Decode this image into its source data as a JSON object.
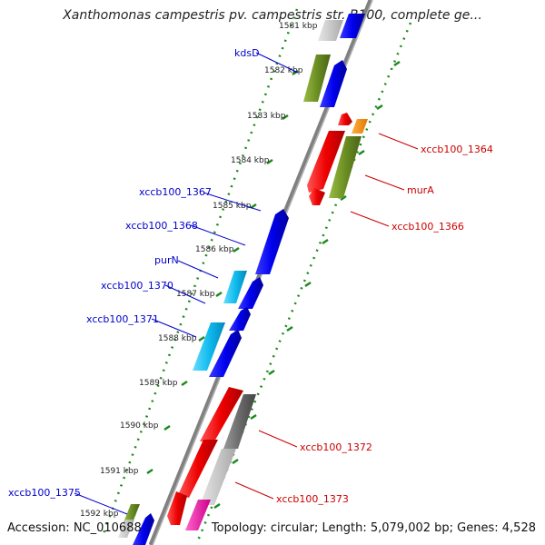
{
  "title": "Xanthomonas campestris pv. campestris str. B100, complete ge...",
  "footer": {
    "accession": "Accession: NC_010688",
    "topology": "Topology: circular; Length: 5,079,002 bp; Genes: 4,528"
  },
  "ticks": [
    {
      "label": "1581 kbp"
    },
    {
      "label": "1582 kbp"
    },
    {
      "label": "1583 kbp"
    },
    {
      "label": "1584 kbp"
    },
    {
      "label": "1585 kbp"
    },
    {
      "label": "1586 kbp"
    },
    {
      "label": "1587 kbp"
    },
    {
      "label": "1588 kbp"
    },
    {
      "label": "1589 kbp"
    },
    {
      "label": "1590 kbp"
    },
    {
      "label": "1591 kbp"
    },
    {
      "label": "1592 kbp"
    }
  ],
  "gene_labels": {
    "forward": [
      "kdsD",
      "xccb100_1367",
      "xccb100_1368",
      "purN",
      "xccb100_1370",
      "xccb100_1371",
      "xccb100_1375"
    ],
    "reverse": [
      "xccb100_1364",
      "murA",
      "xccb100_1366",
      "xccb100_1372",
      "xccb100_1373"
    ]
  },
  "colors": {
    "forward_label": "#0000cc",
    "reverse_label": "#cc0000",
    "backbone": "#808080",
    "tick_dots": "#1a8a1a"
  }
}
